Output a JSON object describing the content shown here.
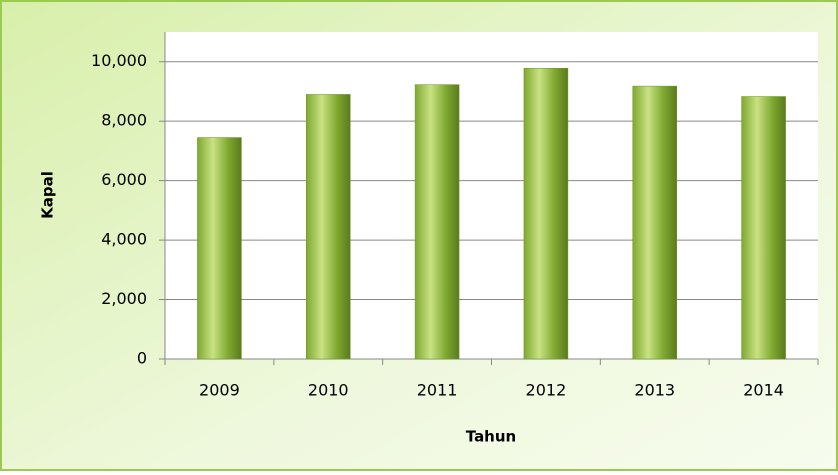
{
  "chart_data": {
    "type": "bar",
    "x_label": "Tahun",
    "y_label": "Kapal",
    "categories": [
      "2009",
      "2010",
      "2011",
      "2012",
      "2013",
      "2014"
    ],
    "values": [
      7450,
      8900,
      9230,
      9780,
      9180,
      8830
    ],
    "color": "#7fa830",
    "ylim": [
      0,
      11000
    ],
    "yticks": [
      0,
      {
        "value": 2000,
        "label": "2,000"
      },
      {
        "value": 4000,
        "label": "4,000"
      },
      {
        "value": 6000,
        "label": "6,000"
      },
      {
        "value": 8000,
        "label": "8,000"
      },
      {
        "value": 10000,
        "label": "10,000"
      }
    ],
    "grid": true
  }
}
